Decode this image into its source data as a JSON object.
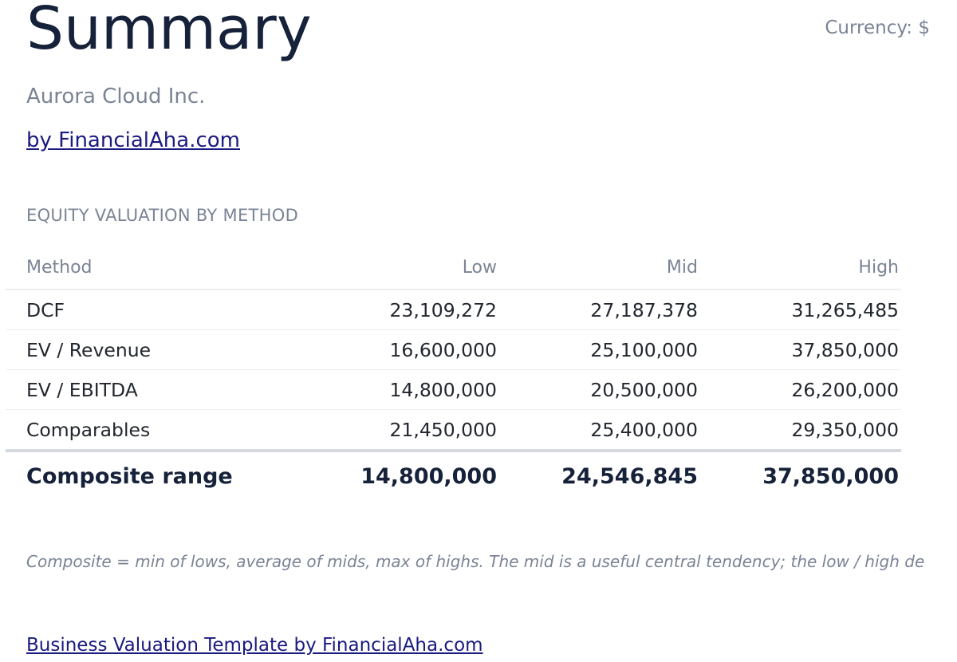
{
  "header": {
    "title": "Summary",
    "currency": "Currency: $",
    "company": "Aurora Cloud Inc.",
    "byline": "by FinancialAha.com"
  },
  "section": {
    "title": "EQUITY VALUATION BY METHOD"
  },
  "table": {
    "columns": [
      "Method",
      "Low",
      "Mid",
      "High"
    ],
    "rows": [
      {
        "method": "DCF",
        "low": "23,109,272",
        "mid": "27,187,378",
        "high": "31,265,485"
      },
      {
        "method": "EV / Revenue",
        "low": "16,600,000",
        "mid": "25,100,000",
        "high": "37,850,000"
      },
      {
        "method": "EV / EBITDA",
        "low": "14,800,000",
        "mid": "20,500,000",
        "high": "26,200,000"
      },
      {
        "method": "Comparables",
        "low": "21,450,000",
        "mid": "25,400,000",
        "high": "29,350,000"
      }
    ],
    "composite": {
      "method": "Composite range",
      "low": "14,800,000",
      "mid": "24,546,845",
      "high": "37,850,000"
    }
  },
  "note": "Composite = min of lows, average of mids, max of highs. The mid is a useful central tendency; the low / high de",
  "footer": {
    "link": "Business Valuation Template by FinancialAha.com"
  },
  "colors": {
    "title": "#16213a",
    "muted": "#7b8495",
    "link": "#1a1a80",
    "divider": "#eceef2"
  }
}
